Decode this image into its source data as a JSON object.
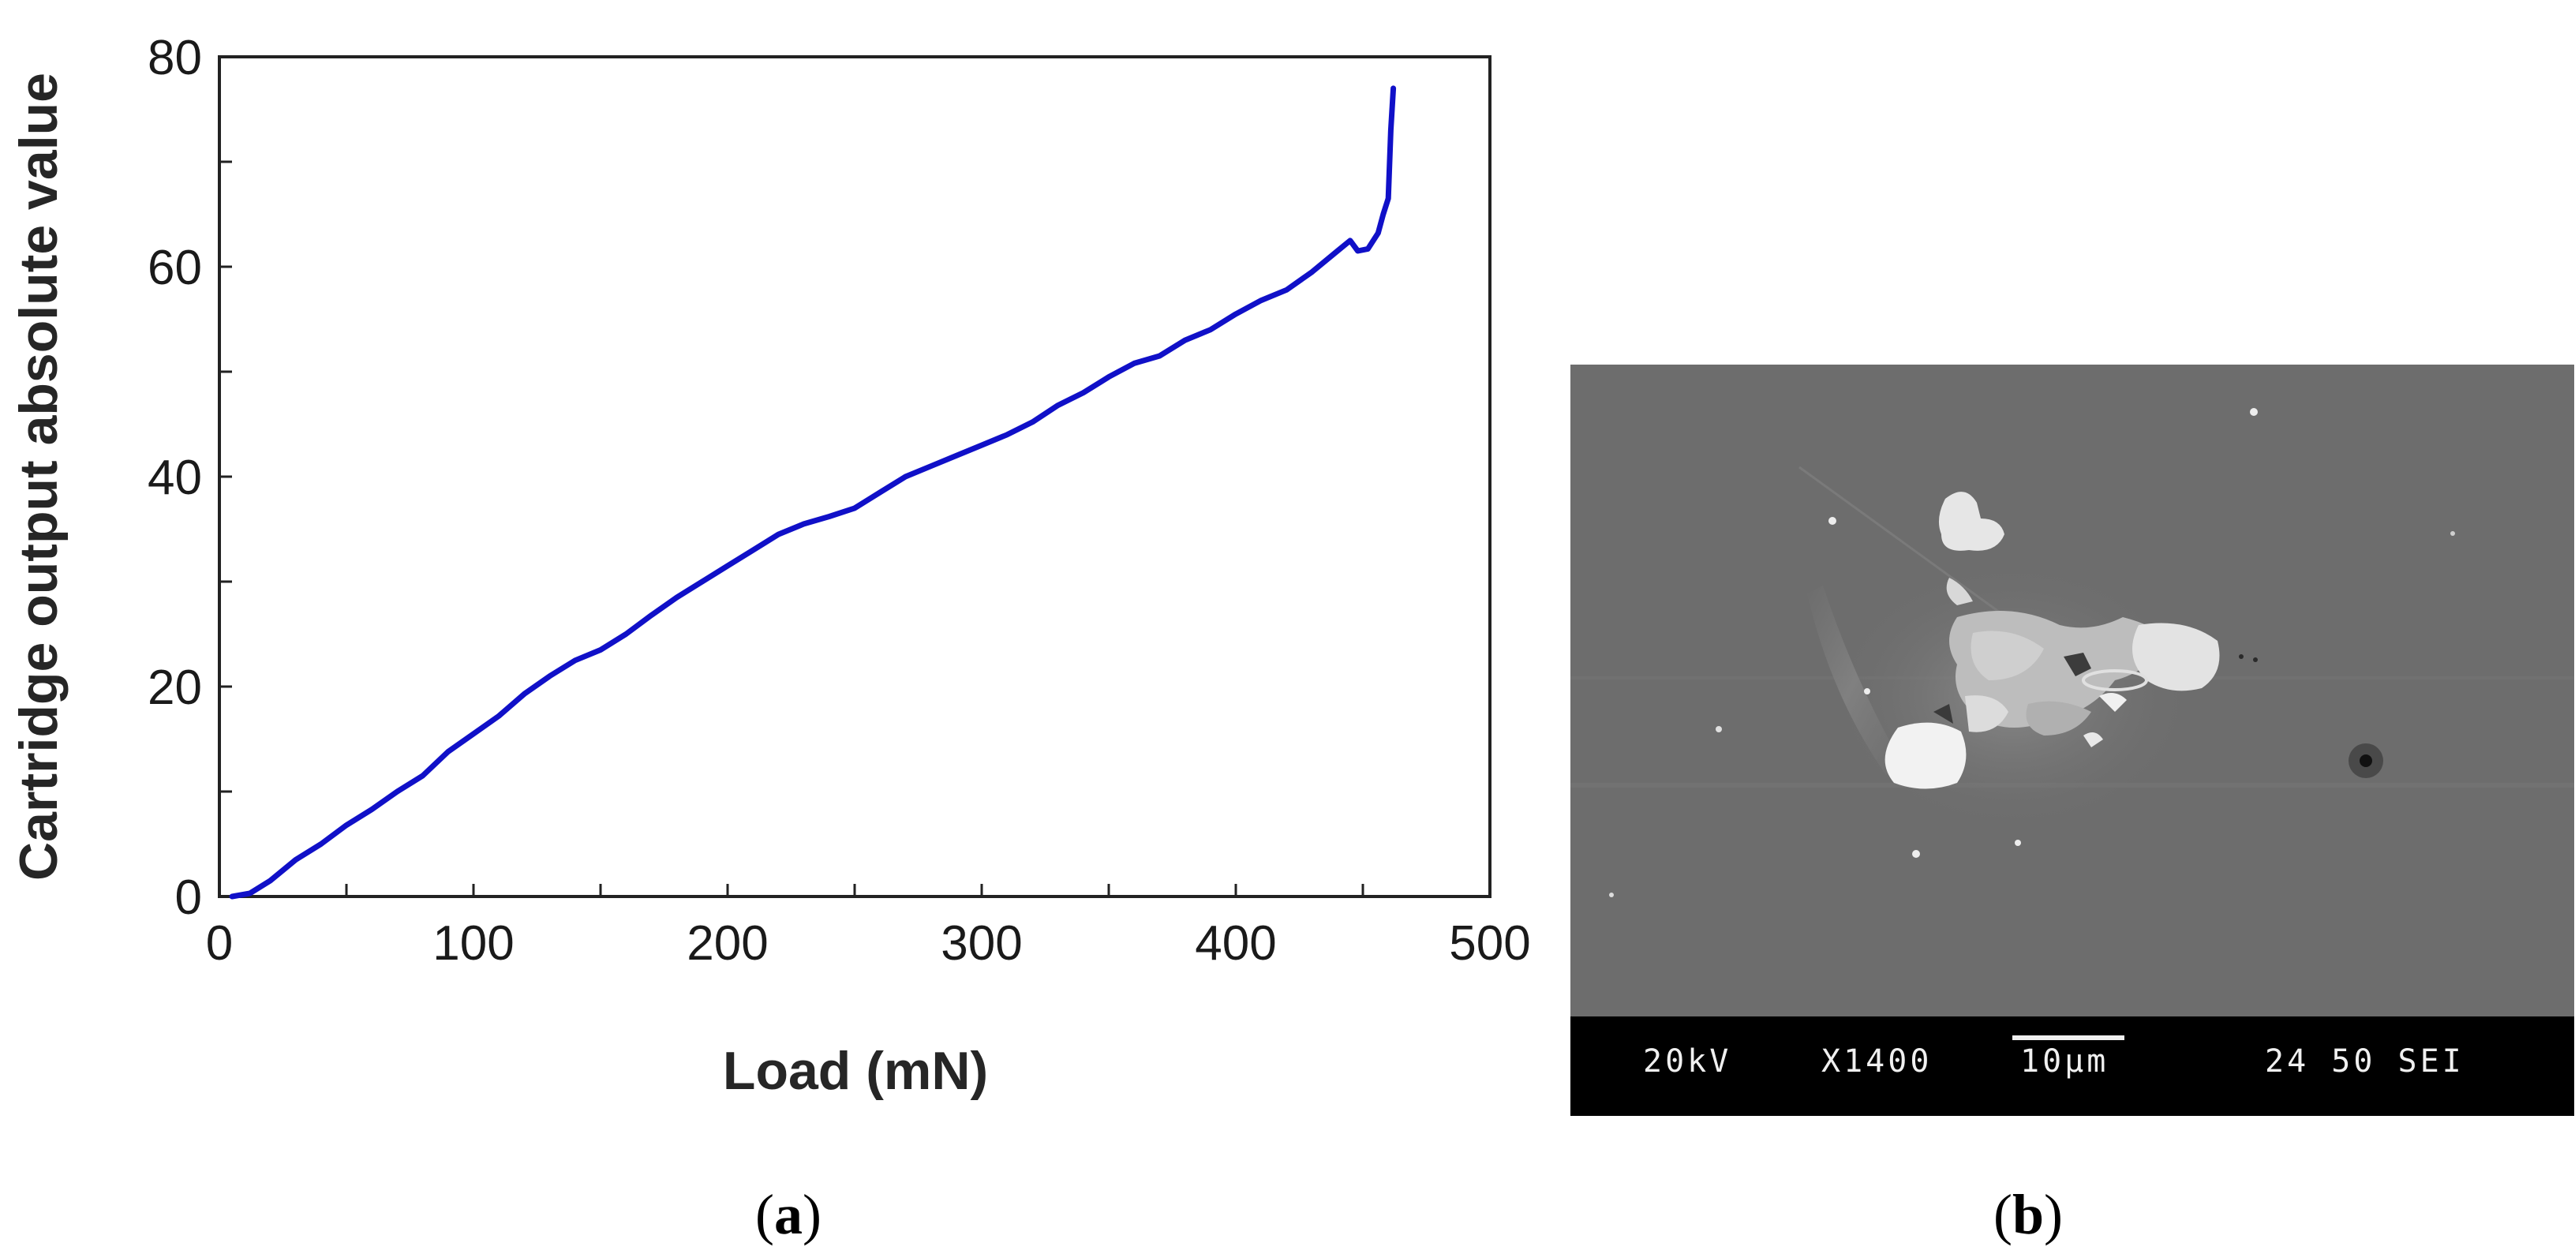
{
  "chart_data": {
    "type": "line",
    "xlabel": "Load (mN)",
    "ylabel": "Cartridge output absolute value",
    "xlim": [
      0,
      500
    ],
    "ylim": [
      0,
      80
    ],
    "x_ticks": [
      "0",
      "100",
      "200",
      "300",
      "400",
      "500"
    ],
    "y_ticks": [
      "0",
      "20",
      "40",
      "60",
      "80"
    ],
    "grid": false,
    "legend": "none",
    "series": [
      {
        "color": "#1010c8",
        "points": [
          [
            5,
            0
          ],
          [
            12,
            0.3
          ],
          [
            20,
            1.5
          ],
          [
            30,
            3.5
          ],
          [
            40,
            5
          ],
          [
            50,
            6.8
          ],
          [
            60,
            8.3
          ],
          [
            70,
            10
          ],
          [
            80,
            11.5
          ],
          [
            90,
            13.8
          ],
          [
            100,
            15.5
          ],
          [
            110,
            17.2
          ],
          [
            120,
            19.3
          ],
          [
            130,
            21
          ],
          [
            140,
            22.5
          ],
          [
            150,
            23.5
          ],
          [
            160,
            25
          ],
          [
            170,
            26.8
          ],
          [
            180,
            28.5
          ],
          [
            190,
            30
          ],
          [
            200,
            31.5
          ],
          [
            210,
            33
          ],
          [
            220,
            34.5
          ],
          [
            230,
            35.5
          ],
          [
            240,
            36.2
          ],
          [
            250,
            37
          ],
          [
            260,
            38.5
          ],
          [
            270,
            40
          ],
          [
            280,
            41
          ],
          [
            290,
            42
          ],
          [
            300,
            43
          ],
          [
            310,
            44
          ],
          [
            320,
            45.2
          ],
          [
            330,
            46.8
          ],
          [
            340,
            48
          ],
          [
            350,
            49.5
          ],
          [
            360,
            50.8
          ],
          [
            370,
            51.5
          ],
          [
            380,
            53
          ],
          [
            390,
            54
          ],
          [
            400,
            55.5
          ],
          [
            410,
            56.8
          ],
          [
            420,
            57.8
          ],
          [
            430,
            59.5
          ],
          [
            440,
            61.5
          ],
          [
            445,
            62.5
          ],
          [
            448,
            61.5
          ],
          [
            452,
            61.7
          ],
          [
            456,
            63.2
          ],
          [
            458,
            65
          ],
          [
            460,
            66.5
          ],
          [
            461,
            73
          ],
          [
            462,
            77
          ]
        ]
      }
    ]
  },
  "sem": {
    "voltage": "20kV",
    "magnification": "X1400",
    "scale": "10µm",
    "id": "24 50 SEI"
  },
  "captions": {
    "a_letter": "a",
    "b_letter": "b"
  }
}
